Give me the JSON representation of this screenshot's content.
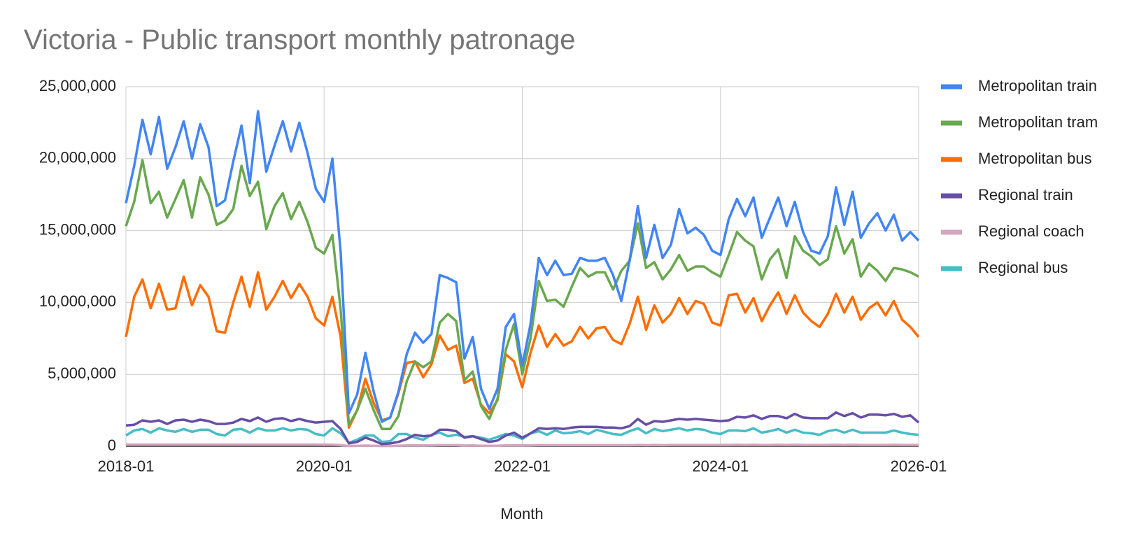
{
  "chart_data": {
    "type": "line",
    "title": "Victoria - Public transport monthly patronage",
    "x_label": "Month",
    "x": [
      "2018-01",
      "2018-02",
      "2018-03",
      "2018-04",
      "2018-05",
      "2018-06",
      "2018-07",
      "2018-08",
      "2018-09",
      "2018-10",
      "2018-11",
      "2018-12",
      "2019-01",
      "2019-02",
      "2019-03",
      "2019-04",
      "2019-05",
      "2019-06",
      "2019-07",
      "2019-08",
      "2019-09",
      "2019-10",
      "2019-11",
      "2019-12",
      "2020-01",
      "2020-02",
      "2020-03",
      "2020-04",
      "2020-05",
      "2020-06",
      "2020-07",
      "2020-08",
      "2020-09",
      "2020-10",
      "2020-11",
      "2020-12",
      "2021-01",
      "2021-02",
      "2021-03",
      "2021-04",
      "2021-05",
      "2021-06",
      "2021-07",
      "2021-08",
      "2021-09",
      "2021-10",
      "2021-11",
      "2021-12",
      "2022-01",
      "2022-02",
      "2022-03",
      "2022-04",
      "2022-05",
      "2022-06",
      "2022-07",
      "2022-08",
      "2022-09",
      "2022-10",
      "2022-11",
      "2022-12",
      "2023-01",
      "2023-02",
      "2023-03",
      "2023-04",
      "2023-05",
      "2023-06",
      "2023-07",
      "2023-08",
      "2023-09",
      "2023-10",
      "2023-11",
      "2023-12",
      "2024-01",
      "2024-02",
      "2024-03",
      "2024-04",
      "2024-05",
      "2024-06",
      "2024-07",
      "2024-08",
      "2024-09",
      "2024-10",
      "2024-11",
      "2024-12",
      "2025-01",
      "2025-02",
      "2025-03",
      "2025-04",
      "2025-05",
      "2025-06",
      "2025-07",
      "2025-08",
      "2025-09",
      "2025-10",
      "2025-11",
      "2025-12",
      "2026-01"
    ],
    "xticks": [
      "2018-01",
      "2020-01",
      "2022-01",
      "2024-01",
      "2026-01"
    ],
    "ylim": [
      0,
      25000000
    ],
    "yticks": [
      0,
      {
        "value": 5000000,
        "label": "5,000,000"
      },
      {
        "value": 10000000,
        "label": "10,000,000"
      },
      {
        "value": 15000000,
        "label": "15,000,000"
      },
      {
        "value": 20000000,
        "label": "20,000,000"
      },
      {
        "value": 25000000,
        "label": "25,000,000"
      }
    ],
    "grid": true,
    "legend": "right",
    "series": [
      {
        "name": "Metropolitan train",
        "color": "#4285f4",
        "values": [
          16900000,
          19500000,
          22700000,
          20300000,
          22900000,
          19300000,
          20800000,
          22600000,
          20000000,
          22400000,
          20800000,
          16700000,
          17100000,
          19800000,
          22300000,
          18300000,
          23300000,
          19100000,
          20900000,
          22600000,
          20500000,
          22500000,
          20400000,
          17900000,
          17000000,
          20000000,
          13500000,
          2300000,
          3600000,
          6500000,
          3800000,
          1700000,
          2000000,
          3800000,
          6400000,
          7900000,
          7200000,
          7800000,
          11900000,
          11700000,
          11400000,
          6100000,
          7600000,
          4000000,
          2600000,
          4000000,
          8300000,
          9200000,
          5600000,
          8500000,
          13100000,
          11900000,
          12900000,
          11900000,
          12000000,
          13100000,
          12900000,
          12900000,
          13100000,
          11900000,
          10100000,
          12900000,
          16700000,
          13100000,
          15400000,
          13100000,
          14000000,
          16500000,
          14800000,
          15200000,
          14700000,
          13600000,
          13300000,
          15800000,
          17200000,
          16000000,
          17300000,
          14500000,
          15900000,
          17300000,
          15300000,
          17000000,
          14900000,
          13600000,
          13400000,
          14600000,
          18000000,
          15400000,
          17700000,
          14500000,
          15500000,
          16200000,
          15000000,
          16100000,
          14300000,
          14900000,
          14300000
        ]
      },
      {
        "name": "Metropolitan tram",
        "color": "#6aa84f",
        "values": [
          15300000,
          17000000,
          19900000,
          16900000,
          17700000,
          15900000,
          17200000,
          18500000,
          15900000,
          18700000,
          17500000,
          15400000,
          15700000,
          16500000,
          19500000,
          17400000,
          18400000,
          15100000,
          16700000,
          17600000,
          15800000,
          17000000,
          15600000,
          13800000,
          13400000,
          14700000,
          9500000,
          1500000,
          2500000,
          4000000,
          2500000,
          1200000,
          1200000,
          2100000,
          4500000,
          5900000,
          5500000,
          5900000,
          8600000,
          9200000,
          8700000,
          4600000,
          5200000,
          2800000,
          1900000,
          3300000,
          6700000,
          8500000,
          5000000,
          7500000,
          11500000,
          10100000,
          10200000,
          9700000,
          11100000,
          12400000,
          11800000,
          12100000,
          12100000,
          10900000,
          12200000,
          12900000,
          15500000,
          12400000,
          12800000,
          11600000,
          12300000,
          13300000,
          12200000,
          12500000,
          12500000,
          12100000,
          11800000,
          13300000,
          14900000,
          14300000,
          13900000,
          11600000,
          13000000,
          13700000,
          11700000,
          14600000,
          13600000,
          13200000,
          12600000,
          13000000,
          15300000,
          13400000,
          14400000,
          11800000,
          12700000,
          12200000,
          11500000,
          12400000,
          12300000,
          12100000,
          11800000
        ]
      },
      {
        "name": "Metropolitan bus",
        "color": "#ff6d01",
        "values": [
          7600000,
          10400000,
          11600000,
          9600000,
          11300000,
          9500000,
          9600000,
          11800000,
          9800000,
          11200000,
          10400000,
          8000000,
          7900000,
          10000000,
          11800000,
          9700000,
          12100000,
          9500000,
          10400000,
          11500000,
          10300000,
          11300000,
          10400000,
          8900000,
          8400000,
          10400000,
          7600000,
          1300000,
          2500000,
          4700000,
          3000000,
          1800000,
          2000000,
          3700000,
          5800000,
          5900000,
          4800000,
          5700000,
          7700000,
          6700000,
          7000000,
          4400000,
          4700000,
          2900000,
          2300000,
          3200000,
          6400000,
          5900000,
          4100000,
          6500000,
          8400000,
          6900000,
          7800000,
          7000000,
          7300000,
          8300000,
          7500000,
          8200000,
          8300000,
          7400000,
          7100000,
          8500000,
          10400000,
          8100000,
          9800000,
          8600000,
          9200000,
          10300000,
          9200000,
          10100000,
          9900000,
          8600000,
          8400000,
          10500000,
          10600000,
          9300000,
          10300000,
          8700000,
          9800000,
          10700000,
          9200000,
          10500000,
          9300000,
          8700000,
          8300000,
          9200000,
          10600000,
          9300000,
          10400000,
          8800000,
          9600000,
          10000000,
          9100000,
          10100000,
          8800000,
          8300000,
          7600000
        ]
      },
      {
        "name": "Regional train",
        "color": "#674ea7",
        "values": [
          1450000,
          1500000,
          1800000,
          1700000,
          1800000,
          1550000,
          1800000,
          1850000,
          1700000,
          1850000,
          1750000,
          1550000,
          1550000,
          1650000,
          1900000,
          1750000,
          2000000,
          1700000,
          1900000,
          1950000,
          1750000,
          1900000,
          1750000,
          1650000,
          1700000,
          1750000,
          1200000,
          200000,
          300000,
          600000,
          400000,
          150000,
          200000,
          300000,
          500000,
          800000,
          700000,
          750000,
          1150000,
          1150000,
          1050000,
          600000,
          700000,
          500000,
          300000,
          400000,
          750000,
          950000,
          600000,
          900000,
          1250000,
          1200000,
          1250000,
          1200000,
          1300000,
          1350000,
          1350000,
          1350000,
          1300000,
          1300000,
          1250000,
          1400000,
          1900000,
          1500000,
          1750000,
          1700000,
          1800000,
          1900000,
          1850000,
          1900000,
          1850000,
          1800000,
          1750000,
          1800000,
          2050000,
          2000000,
          2150000,
          1900000,
          2100000,
          2100000,
          1950000,
          2250000,
          2000000,
          1950000,
          1950000,
          1950000,
          2350000,
          2100000,
          2300000,
          2000000,
          2200000,
          2200000,
          2150000,
          2250000,
          2050000,
          2150000,
          1650000
        ]
      },
      {
        "name": "Regional coach",
        "color": "#d5a6bd",
        "values": [
          120000,
          120000,
          120000,
          120000,
          120000,
          120000,
          120000,
          120000,
          120000,
          120000,
          120000,
          120000,
          120000,
          120000,
          120000,
          120000,
          120000,
          120000,
          120000,
          120000,
          120000,
          120000,
          120000,
          120000,
          110000,
          110000,
          80000,
          20000,
          30000,
          50000,
          40000,
          20000,
          20000,
          40000,
          60000,
          70000,
          60000,
          70000,
          80000,
          80000,
          80000,
          50000,
          60000,
          40000,
          30000,
          40000,
          60000,
          70000,
          60000,
          70000,
          80000,
          80000,
          80000,
          80000,
          80000,
          80000,
          80000,
          80000,
          80000,
          80000,
          80000,
          80000,
          90000,
          80000,
          90000,
          80000,
          90000,
          90000,
          90000,
          90000,
          90000,
          90000,
          90000,
          90000,
          100000,
          90000,
          100000,
          90000,
          90000,
          100000,
          90000,
          100000,
          90000,
          90000,
          90000,
          90000,
          100000,
          90000,
          100000,
          90000,
          90000,
          90000,
          90000,
          100000,
          90000,
          90000,
          90000
        ]
      },
      {
        "name": "Regional bus",
        "color": "#46bdc6",
        "values": [
          750000,
          1100000,
          1200000,
          950000,
          1250000,
          1100000,
          1000000,
          1200000,
          1000000,
          1150000,
          1150000,
          850000,
          750000,
          1150000,
          1200000,
          950000,
          1250000,
          1100000,
          1100000,
          1250000,
          1100000,
          1200000,
          1150000,
          850000,
          750000,
          1250000,
          900000,
          250000,
          450000,
          750000,
          750000,
          300000,
          350000,
          850000,
          850000,
          600000,
          450000,
          800000,
          950000,
          700000,
          800000,
          650000,
          700000,
          600000,
          450000,
          650000,
          850000,
          750000,
          500000,
          900000,
          1050000,
          800000,
          1100000,
          900000,
          950000,
          1050000,
          850000,
          1150000,
          1000000,
          850000,
          800000,
          1050000,
          1250000,
          900000,
          1200000,
          1050000,
          1150000,
          1250000,
          1100000,
          1200000,
          1150000,
          950000,
          850000,
          1100000,
          1100000,
          1050000,
          1250000,
          950000,
          1050000,
          1200000,
          950000,
          1150000,
          950000,
          900000,
          800000,
          1050000,
          1150000,
          950000,
          1150000,
          950000,
          950000,
          950000,
          950000,
          1100000,
          950000,
          850000,
          800000
        ]
      }
    ]
  }
}
